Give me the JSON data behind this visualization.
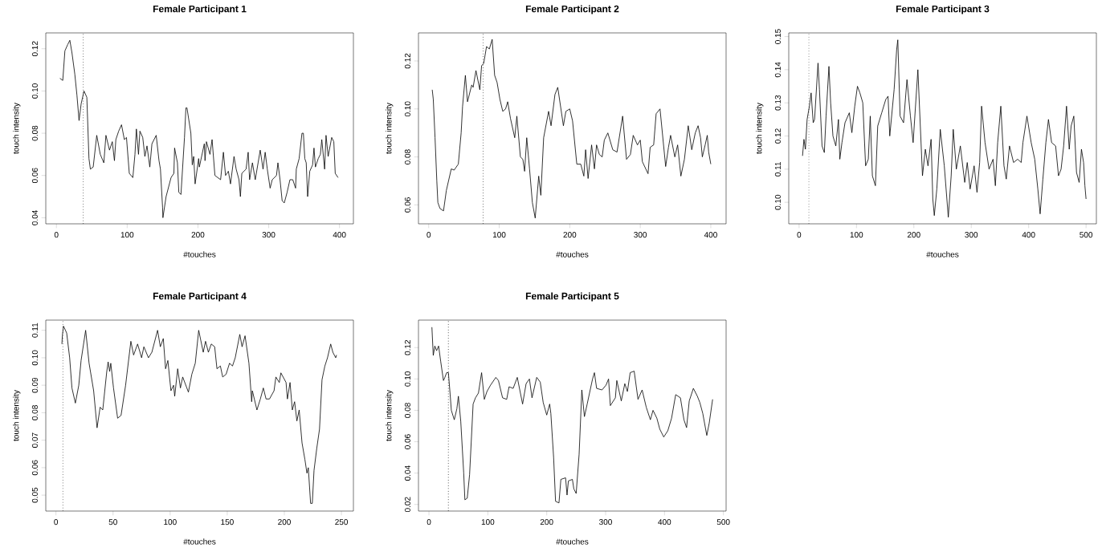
{
  "chart_data": [
    {
      "type": "line",
      "title": "Female Participant 1",
      "xlabel": "#touches",
      "ylabel": "touch intensity",
      "color": "#000000",
      "x": [
        5,
        9,
        12,
        16,
        19,
        22,
        26,
        29,
        32,
        35,
        39,
        43,
        46,
        48,
        52,
        57,
        62,
        67,
        70,
        75,
        79,
        82,
        84,
        88,
        92,
        96,
        99,
        103,
        108,
        111,
        113,
        116,
        118,
        122,
        125,
        128,
        132,
        135,
        141,
        145,
        147,
        150,
        150.5,
        155,
        162,
        166,
        167,
        171,
        173,
        176,
        181,
        183,
        184.5,
        190,
        192,
        194,
        196,
        201,
        202,
        209,
        210,
        212,
        217,
        220,
        224,
        228,
        232,
        236,
        239,
        243,
        246,
        251,
        254,
        258,
        260,
        262,
        268,
        271,
        273,
        277,
        281,
        285,
        288,
        292,
        295,
        298,
        302,
        305,
        311,
        313,
        316,
        319,
        322,
        326,
        330,
        334,
        338,
        339,
        343,
        347,
        349,
        351,
        353,
        355,
        358,
        362,
        364,
        366,
        370,
        373,
        375,
        379,
        381,
        384,
        389,
        392,
        394,
        398
      ],
      "values": [
        0.106,
        0.105,
        0.119,
        0.122,
        0.124,
        0.118,
        0.108,
        0.098,
        0.086,
        0.094,
        0.1,
        0.097,
        0.068,
        0.063,
        0.064,
        0.079,
        0.07,
        0.066,
        0.079,
        0.072,
        0.076,
        0.067,
        0.077,
        0.081,
        0.084,
        0.077,
        0.078,
        0.061,
        0.059,
        0.07,
        0.082,
        0.07,
        0.081,
        0.078,
        0.069,
        0.074,
        0.064,
        0.075,
        0.079,
        0.067,
        0.063,
        0.045,
        0.04,
        0.05,
        0.059,
        0.061,
        0.073,
        0.066,
        0.052,
        0.051,
        0.078,
        0.092,
        0.092,
        0.08,
        0.065,
        0.069,
        0.056,
        0.068,
        0.064,
        0.075,
        0.067,
        0.076,
        0.07,
        0.077,
        0.06,
        0.059,
        0.058,
        0.071,
        0.06,
        0.062,
        0.056,
        0.069,
        0.063,
        0.058,
        0.05,
        0.061,
        0.063,
        0.071,
        0.058,
        0.066,
        0.058,
        0.066,
        0.072,
        0.063,
        0.071,
        0.063,
        0.054,
        0.058,
        0.06,
        0.066,
        0.058,
        0.048,
        0.047,
        0.052,
        0.058,
        0.058,
        0.054,
        0.063,
        0.068,
        0.08,
        0.08,
        0.068,
        0.066,
        0.05,
        0.062,
        0.065,
        0.073,
        0.064,
        0.068,
        0.07,
        0.077,
        0.063,
        0.079,
        0.069,
        0.078,
        0.076,
        0.061,
        0.059
      ],
      "xlim": [
        -15,
        419.7
      ],
      "ylim": [
        0.0371,
        0.1275
      ],
      "xticks": [
        0,
        100,
        200,
        300,
        400
      ],
      "yticks": [
        {
          "value": 0.04,
          "label": "0.04"
        },
        {
          "value": 0.06,
          "label": "0.06"
        },
        {
          "value": 0.08,
          "label": "0.08"
        },
        {
          "value": 0.1,
          "label": "0.10"
        },
        {
          "value": 0.12,
          "label": "0.12"
        }
      ],
      "ref_lines": [
        {
          "axis": "x",
          "value": 38,
          "line_style": "dotted"
        }
      ]
    },
    {
      "type": "line",
      "title": "Female Participant 2",
      "xlabel": "#touches",
      "ylabel": "touch intensity",
      "color": "#000000",
      "x": [
        5,
        6.5,
        9,
        11.5,
        13,
        16,
        21,
        25,
        32,
        36,
        42,
        46,
        48,
        52,
        55,
        61,
        63,
        67,
        72.5,
        75,
        78,
        82,
        86,
        90,
        93.5,
        97,
        101,
        105,
        109,
        112,
        116,
        122,
        125,
        130,
        133.5,
        136,
        139,
        143,
        147,
        151,
        156,
        159,
        163,
        170,
        173.5,
        179,
        183,
        191,
        194.5,
        200,
        204,
        210,
        215.6,
        220,
        222.5,
        226,
        231,
        235,
        238,
        242,
        246,
        249,
        254,
        261,
        267,
        275,
        280.5,
        286,
        290,
        296,
        300,
        303,
        311,
        314,
        319,
        322.5,
        328,
        336,
        340,
        343,
        349,
        353,
        357.6,
        362.6,
        368,
        373,
        378,
        382,
        385.5,
        388,
        392,
        395,
        397,
        400
      ],
      "values": [
        0.108,
        0.104,
        0.088,
        0.07,
        0.061,
        0.0585,
        0.0575,
        0.066,
        0.075,
        0.0745,
        0.077,
        0.09,
        0.101,
        0.114,
        0.103,
        0.11,
        0.109,
        0.116,
        0.108,
        0.118,
        0.119,
        0.126,
        0.125,
        0.129,
        0.114,
        0.111,
        0.104,
        0.099,
        0.1,
        0.103,
        0.096,
        0.088,
        0.097,
        0.08,
        0.079,
        0.074,
        0.088,
        0.075,
        0.061,
        0.0545,
        0.072,
        0.064,
        0.088,
        0.099,
        0.093,
        0.106,
        0.109,
        0.093,
        0.099,
        0.1,
        0.095,
        0.077,
        0.077,
        0.072,
        0.083,
        0.071,
        0.085,
        0.075,
        0.085,
        0.081,
        0.08,
        0.087,
        0.09,
        0.083,
        0.082,
        0.097,
        0.079,
        0.081,
        0.089,
        0.085,
        0.087,
        0.078,
        0.073,
        0.084,
        0.085,
        0.098,
        0.1,
        0.076,
        0.084,
        0.089,
        0.08,
        0.085,
        0.072,
        0.079,
        0.093,
        0.083,
        0.09,
        0.093,
        0.088,
        0.08,
        0.085,
        0.089,
        0.082,
        0.077
      ],
      "xlim": [
        -14.5,
        421.7
      ],
      "ylim": [
        0.0521,
        0.1317
      ],
      "xticks": [
        0,
        100,
        200,
        300,
        400
      ],
      "yticks": [
        {
          "value": 0.06,
          "label": "0.06"
        },
        {
          "value": 0.08,
          "label": "0.08"
        },
        {
          "value": 0.1,
          "label": "0.10"
        },
        {
          "value": 0.12,
          "label": "0.12"
        }
      ],
      "ref_lines": [
        {
          "axis": "x",
          "value": 77,
          "line_style": "dotted"
        }
      ]
    },
    {
      "type": "line",
      "title": "Female Participant 3",
      "xlabel": "#touches",
      "ylabel": "touch intensity",
      "color": "#000000",
      "x": [
        6,
        8.5,
        11,
        14,
        18,
        21,
        24.6,
        27,
        33,
        35.5,
        40,
        44,
        47,
        52,
        55,
        59,
        64,
        68.6,
        71,
        74.7,
        80,
        87.5,
        92,
        97,
        101.7,
        106,
        111,
        115.9,
        120.6,
        124,
        127.7,
        133,
        137,
        144,
        151,
        155,
        158,
        165.6,
        170,
        172,
        176,
        182,
        188,
        194,
        198.7,
        207,
        215,
        220,
        224.6,
        230,
        233,
        235.6,
        240,
        246,
        253,
        260,
        265,
        268.6,
        274,
        281,
        288.6,
        293,
        298,
        305,
        310,
        314.6,
        318,
        324,
        331,
        338,
        342,
        346,
        351.5,
        357,
        361,
        366.6,
        373.7,
        380.8,
        387,
        390,
        397,
        404.4,
        410.6,
        416,
        420,
        424.8,
        430,
        434.5,
        440,
        447,
        452,
        456.5,
        461,
        466,
        470.7,
        474,
        478.7,
        483.4,
        488,
        492,
        495.7,
        498,
        500
      ],
      "values": [
        0.114,
        0.119,
        0.116,
        0.125,
        0.129,
        0.133,
        0.124,
        0.125,
        0.142,
        0.134,
        0.117,
        0.115,
        0.126,
        0.141,
        0.13,
        0.12,
        0.117,
        0.125,
        0.113,
        0.118,
        0.124,
        0.127,
        0.121,
        0.129,
        0.135,
        0.133,
        0.13,
        0.111,
        0.113,
        0.126,
        0.108,
        0.105,
        0.123,
        0.127,
        0.131,
        0.132,
        0.12,
        0.134,
        0.146,
        0.149,
        0.126,
        0.124,
        0.137,
        0.126,
        0.118,
        0.14,
        0.108,
        0.116,
        0.111,
        0.119,
        0.101,
        0.096,
        0.104,
        0.122,
        0.111,
        0.0955,
        0.108,
        0.122,
        0.11,
        0.117,
        0.106,
        0.112,
        0.104,
        0.111,
        0.103,
        0.112,
        0.129,
        0.118,
        0.11,
        0.113,
        0.105,
        0.118,
        0.129,
        0.111,
        0.107,
        0.117,
        0.112,
        0.113,
        0.112,
        0.118,
        0.126,
        0.118,
        0.113,
        0.104,
        0.0965,
        0.107,
        0.118,
        0.125,
        0.118,
        0.117,
        0.108,
        0.11,
        0.117,
        0.129,
        0.116,
        0.123,
        0.126,
        0.109,
        0.106,
        0.116,
        0.112,
        0.105,
        0.101
      ],
      "xlim": [
        -18,
        518
      ],
      "ylim": [
        0.0935,
        0.1511
      ],
      "xticks": [
        0,
        100,
        200,
        300,
        400,
        500
      ],
      "yticks": [
        {
          "value": 0.1,
          "label": "0.10"
        },
        0.11,
        0.12,
        0.13,
        0.14,
        0.15
      ],
      "ref_lines": [
        {
          "axis": "x",
          "value": 17,
          "line_style": "dotted"
        }
      ]
    },
    {
      "type": "line",
      "title": "Female Participant 4",
      "xlabel": "#touches",
      "ylabel": "touch intensity",
      "color": "#000000",
      "x": [
        5.2,
        5.6,
        6.6,
        9.4,
        12,
        14,
        17,
        20,
        22,
        26,
        29,
        33,
        36,
        38.7,
        41,
        44.5,
        45.7,
        47,
        48,
        50.4,
        54,
        57,
        61,
        65.6,
        68,
        71.5,
        75,
        77,
        81,
        84,
        89,
        91.4,
        94,
        96,
        98,
        100.7,
        103,
        104,
        106.6,
        109,
        111,
        116,
        119,
        122,
        125,
        129,
        131,
        133.5,
        136,
        139,
        141,
        144,
        146,
        149,
        152,
        154.6,
        157,
        161,
        163,
        165.6,
        169,
        171.4,
        172,
        176,
        179,
        181.6,
        184,
        187,
        191,
        192.6,
        195.6,
        197,
        201.5,
        202.7,
        205,
        207,
        209,
        211,
        213,
        215.5,
        218,
        219.8,
        221,
        223,
        224.5,
        226,
        228.4,
        230.8,
        233,
        235.5,
        237.8,
        240.6,
        242.5,
        245,
        245.7
      ],
      "values": [
        0.105,
        0.108,
        0.1115,
        0.109,
        0.1,
        0.089,
        0.0835,
        0.09,
        0.099,
        0.11,
        0.098,
        0.088,
        0.0745,
        0.082,
        0.081,
        0.095,
        0.0985,
        0.095,
        0.098,
        0.089,
        0.078,
        0.079,
        0.09,
        0.106,
        0.101,
        0.105,
        0.1,
        0.104,
        0.1,
        0.102,
        0.11,
        0.104,
        0.107,
        0.096,
        0.099,
        0.088,
        0.09,
        0.086,
        0.096,
        0.089,
        0.093,
        0.0875,
        0.094,
        0.098,
        0.11,
        0.102,
        0.106,
        0.102,
        0.105,
        0.104,
        0.096,
        0.097,
        0.093,
        0.094,
        0.098,
        0.097,
        0.1,
        0.1085,
        0.104,
        0.108,
        0.098,
        0.084,
        0.088,
        0.081,
        0.085,
        0.089,
        0.085,
        0.085,
        0.088,
        0.093,
        0.091,
        0.0945,
        0.091,
        0.085,
        0.091,
        0.081,
        0.084,
        0.077,
        0.081,
        0.069,
        0.063,
        0.058,
        0.06,
        0.047,
        0.047,
        0.059,
        0.067,
        0.074,
        0.092,
        0.097,
        0.1,
        0.105,
        0.102,
        0.1,
        0.101
      ],
      "xlim": [
        -8.9,
        260.5
      ],
      "ylim": [
        0.0442,
        0.1137
      ],
      "xticks": [
        0,
        50,
        100,
        150,
        200,
        250
      ],
      "yticks": [
        0.05,
        0.06,
        0.07,
        0.08,
        0.09,
        {
          "value": 0.1,
          "label": "0.10"
        },
        0.11
      ],
      "ref_lines": [
        {
          "axis": "x",
          "value": 6,
          "line_style": "dotted"
        }
      ]
    },
    {
      "type": "line",
      "title": "Female Participant 5",
      "xlabel": "#touches",
      "ylabel": "touch intensity",
      "color": "#000000",
      "x": [
        5,
        7.3,
        10,
        13,
        16.4,
        20,
        24.6,
        27,
        30,
        33,
        36,
        38,
        43,
        47.4,
        50,
        54,
        59,
        61,
        65,
        69,
        75,
        79,
        84,
        89.4,
        94,
        98.5,
        104.5,
        113.6,
        118,
        125,
        132,
        136,
        143,
        150,
        159,
        165,
        170.6,
        175,
        183,
        189,
        194,
        200,
        205,
        207,
        211.7,
        215,
        220.8,
        224,
        232,
        234.5,
        236.8,
        243.6,
        246,
        250,
        255,
        259.6,
        264,
        268.7,
        277.8,
        281,
        284.7,
        293.8,
        300.6,
        305,
        308,
        316.6,
        319,
        326.6,
        332.6,
        337,
        341.7,
        348.5,
        355,
        362,
        369,
        376,
        380.5,
        387,
        392,
        398.7,
        405.6,
        412,
        419,
        427,
        433,
        437.5,
        442,
        449,
        455.8,
        460,
        465,
        471.8,
        476,
        481.7
      ],
      "values": [
        0.133,
        0.115,
        0.121,
        0.118,
        0.121,
        0.111,
        0.099,
        0.101,
        0.104,
        0.104,
        0.09,
        0.08,
        0.074,
        0.081,
        0.089,
        0.073,
        0.04,
        0.023,
        0.024,
        0.039,
        0.084,
        0.088,
        0.091,
        0.104,
        0.087,
        0.092,
        0.096,
        0.101,
        0.099,
        0.088,
        0.087,
        0.095,
        0.094,
        0.101,
        0.084,
        0.097,
        0.1,
        0.088,
        0.101,
        0.098,
        0.085,
        0.077,
        0.084,
        0.078,
        0.05,
        0.022,
        0.021,
        0.036,
        0.037,
        0.026,
        0.035,
        0.036,
        0.03,
        0.027,
        0.052,
        0.093,
        0.076,
        0.084,
        0.1,
        0.104,
        0.094,
        0.093,
        0.096,
        0.1,
        0.083,
        0.088,
        0.099,
        0.086,
        0.097,
        0.092,
        0.104,
        0.105,
        0.087,
        0.093,
        0.082,
        0.074,
        0.08,
        0.075,
        0.068,
        0.063,
        0.067,
        0.075,
        0.09,
        0.088,
        0.074,
        0.069,
        0.086,
        0.094,
        0.089,
        0.085,
        0.078,
        0.064,
        0.072,
        0.087
      ],
      "xlim": [
        -17.8,
        504.6
      ],
      "ylim": [
        0.0158,
        0.1375
      ],
      "xticks": [
        0,
        100,
        200,
        300,
        400,
        500
      ],
      "yticks": [
        0.02,
        0.04,
        0.06,
        0.08,
        {
          "value": 0.1,
          "label": "0.10"
        },
        0.12
      ],
      "ref_lines": [
        {
          "axis": "x",
          "value": 33,
          "line_style": "dotted"
        }
      ]
    }
  ]
}
